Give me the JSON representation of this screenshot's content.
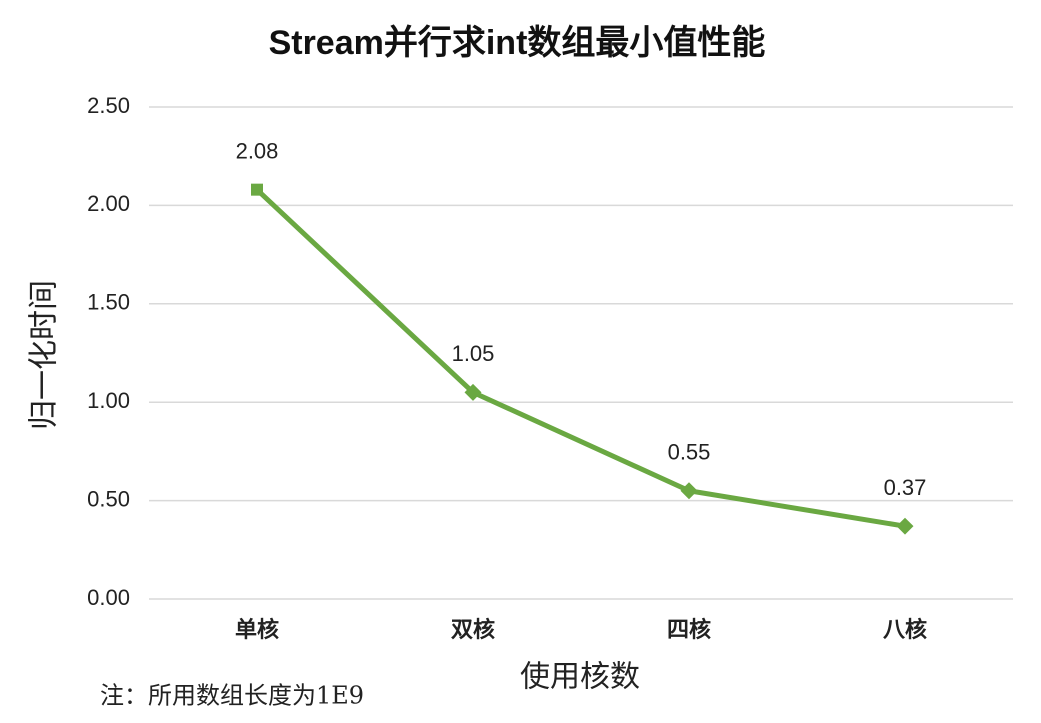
{
  "chart_data": {
    "type": "line",
    "title": "Stream并行求int数组最小值性能",
    "categories": [
      "单核",
      "双核",
      "四核",
      "八核"
    ],
    "series": [
      {
        "name": null,
        "color": "#6aa842",
        "values": [
          2.08,
          1.05,
          0.55,
          0.37
        ]
      }
    ],
    "ylim": [
      0,
      2.5
    ],
    "yticks": [
      {
        "value": 0,
        "label": "0.00"
      },
      {
        "value": 0.5,
        "label": "0.50"
      },
      {
        "value": 1,
        "label": "1.00"
      },
      {
        "value": 1.5,
        "label": "1.50"
      },
      {
        "value": 2,
        "label": "2.00"
      },
      {
        "value": 2.5,
        "label": "2.50"
      }
    ],
    "ylabel": "归一化时间",
    "xlabel": "使用核数",
    "note": "注：所用数组长度为1E9",
    "grid": true
  }
}
